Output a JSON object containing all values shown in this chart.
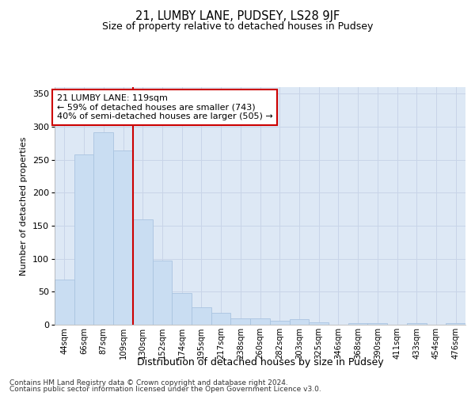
{
  "title": "21, LUMBY LANE, PUDSEY, LS28 9JF",
  "subtitle": "Size of property relative to detached houses in Pudsey",
  "xlabel": "Distribution of detached houses by size in Pudsey",
  "ylabel": "Number of detached properties",
  "categories": [
    "44sqm",
    "66sqm",
    "87sqm",
    "109sqm",
    "130sqm",
    "152sqm",
    "174sqm",
    "195sqm",
    "217sqm",
    "238sqm",
    "260sqm",
    "282sqm",
    "303sqm",
    "325sqm",
    "346sqm",
    "368sqm",
    "390sqm",
    "411sqm",
    "433sqm",
    "454sqm",
    "476sqm"
  ],
  "values": [
    68,
    258,
    292,
    264,
    160,
    97,
    48,
    27,
    18,
    10,
    10,
    6,
    9,
    4,
    0,
    3,
    2,
    0,
    2,
    0,
    3
  ],
  "bar_color": "#c9ddf2",
  "bar_edgecolor": "#aac4e0",
  "vline_index": 3,
  "vline_color": "#cc0000",
  "annotation_line1": "21 LUMBY LANE: 119sqm",
  "annotation_line2": "← 59% of detached houses are smaller (743)",
  "annotation_line3": "40% of semi-detached houses are larger (505) →",
  "annotation_box_color": "#ffffff",
  "annotation_box_edgecolor": "#cc0000",
  "ylim": [
    0,
    360
  ],
  "yticks": [
    0,
    50,
    100,
    150,
    200,
    250,
    300,
    350
  ],
  "grid_color": "#c8d4e8",
  "background_color": "#dde8f5",
  "title_fontsize": 10.5,
  "subtitle_fontsize": 9,
  "footer_line1": "Contains HM Land Registry data © Crown copyright and database right 2024.",
  "footer_line2": "Contains public sector information licensed under the Open Government Licence v3.0."
}
